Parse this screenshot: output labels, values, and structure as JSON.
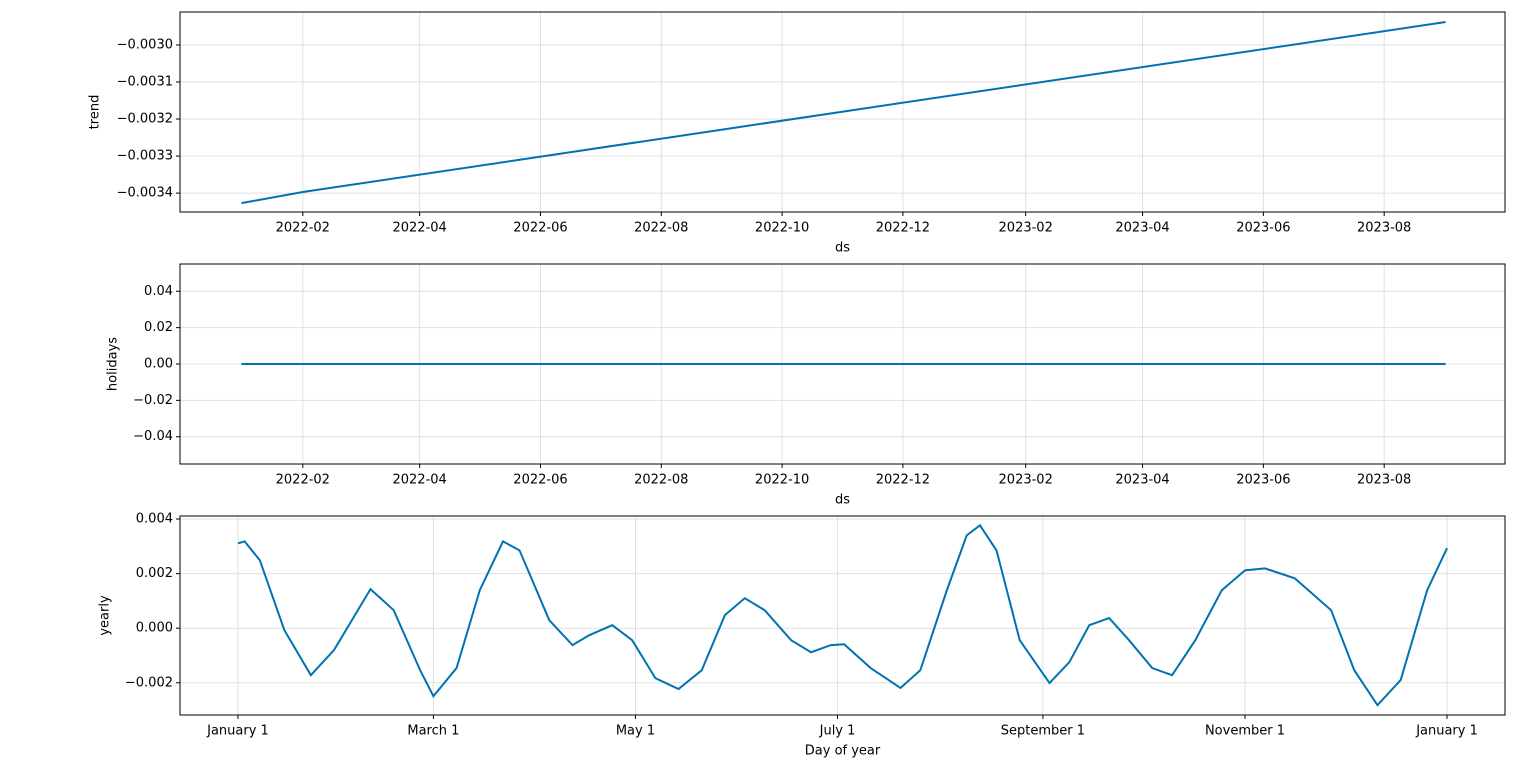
{
  "chart_data": [
    {
      "type": "line",
      "color": "#0072B2",
      "grid": true,
      "ylabel": "trend",
      "xlabel": "ds",
      "x": [
        "2022-01",
        "2022-02",
        "2023-09"
      ],
      "values": [
        -0.003427,
        -0.003397,
        -0.002938
      ],
      "xlim": [
        "2021-12",
        "2023-10"
      ],
      "xticks": [
        "2022-02",
        "2022-04",
        "2022-06",
        "2022-08",
        "2022-10",
        "2022-12",
        "2023-02",
        "2023-04",
        "2023-06",
        "2023-08"
      ],
      "ylim": [
        -0.003451,
        -0.002911
      ],
      "yticks": [
        {
          "value": -0.0034,
          "label": "−0.0034"
        },
        {
          "value": -0.0033,
          "label": "−0.0033"
        },
        {
          "value": -0.0032,
          "label": "−0.0032"
        },
        {
          "value": -0.0031,
          "label": "−0.0031"
        },
        {
          "value": -0.003,
          "label": "−0.0030"
        }
      ]
    },
    {
      "type": "line",
      "color": "#0072B2",
      "grid": true,
      "ylabel": "holidays",
      "xlabel": "ds",
      "x": [
        "2022-01",
        "2023-09"
      ],
      "values": [
        0,
        0
      ],
      "xlim": [
        "2021-12",
        "2023-10"
      ],
      "xticks": [
        "2022-02",
        "2022-04",
        "2022-06",
        "2022-08",
        "2022-10",
        "2022-12",
        "2023-02",
        "2023-04",
        "2023-06",
        "2023-08"
      ],
      "ylim": [
        -0.055,
        0.055
      ],
      "yticks": [
        {
          "value": -0.04,
          "label": "−0.04"
        },
        {
          "value": -0.02,
          "label": "−0.02"
        },
        {
          "value": 0,
          "label": "0.00"
        },
        0.02,
        0.04
      ]
    },
    {
      "type": "line",
      "color": "#0072B2",
      "grid": true,
      "ylabel": "yearly",
      "xlabel": "Day of year",
      "x": [
        0,
        2,
        6.6,
        14,
        22,
        29,
        40,
        47,
        55,
        59,
        66,
        73,
        80,
        85,
        94,
        101,
        106,
        113,
        119,
        126,
        133,
        140,
        147,
        153,
        159,
        167,
        173,
        179,
        183,
        191,
        200,
        206,
        214,
        220,
        224,
        229,
        236,
        245,
        251,
        257,
        263,
        269,
        276,
        282,
        289,
        297,
        304,
        310,
        319,
        330,
        337,
        344,
        351,
        359,
        365
      ],
      "values": [
        0.00311,
        0.00318,
        0.00249,
        -7e-05,
        -0.00172,
        -0.0008,
        0.00143,
        0.00066,
        -0.00154,
        -0.00249,
        -0.00146,
        0.00139,
        0.00318,
        0.00285,
        0.00029,
        -0.00062,
        -0.00026,
        0.00011,
        -0.00044,
        -0.00183,
        -0.00223,
        -0.00154,
        0.00048,
        0.0011,
        0.00066,
        -0.00044,
        -0.00088,
        -0.00062,
        -0.00059,
        -0.00146,
        -0.00219,
        -0.00154,
        0.00139,
        0.0034,
        0.00377,
        0.00285,
        -0.00044,
        -0.00201,
        -0.00124,
        0.00011,
        0.00037,
        -0.00044,
        -0.00146,
        -0.00172,
        -0.00044,
        0.00139,
        0.00212,
        0.00219,
        0.00183,
        0.00066,
        -0.00154,
        -0.00282,
        -0.0019,
        0.00139,
        0.00293
      ],
      "xlim": [
        -17.5,
        382.5
      ],
      "xticks": [
        {
          "value": 0,
          "label": "January 1"
        },
        {
          "value": 59,
          "label": "March 1"
        },
        {
          "value": 120,
          "label": "May 1"
        },
        {
          "value": 181,
          "label": "July 1"
        },
        {
          "value": 243,
          "label": "September 1"
        },
        {
          "value": 304,
          "label": "November 1"
        },
        {
          "value": 365,
          "label": "January 1"
        }
      ],
      "ylim": [
        -0.00318,
        0.00411
      ],
      "yticks": [
        {
          "value": -0.002,
          "label": "−0.002"
        },
        {
          "value": 0,
          "label": "0.000"
        },
        0.002,
        0.004
      ]
    }
  ]
}
